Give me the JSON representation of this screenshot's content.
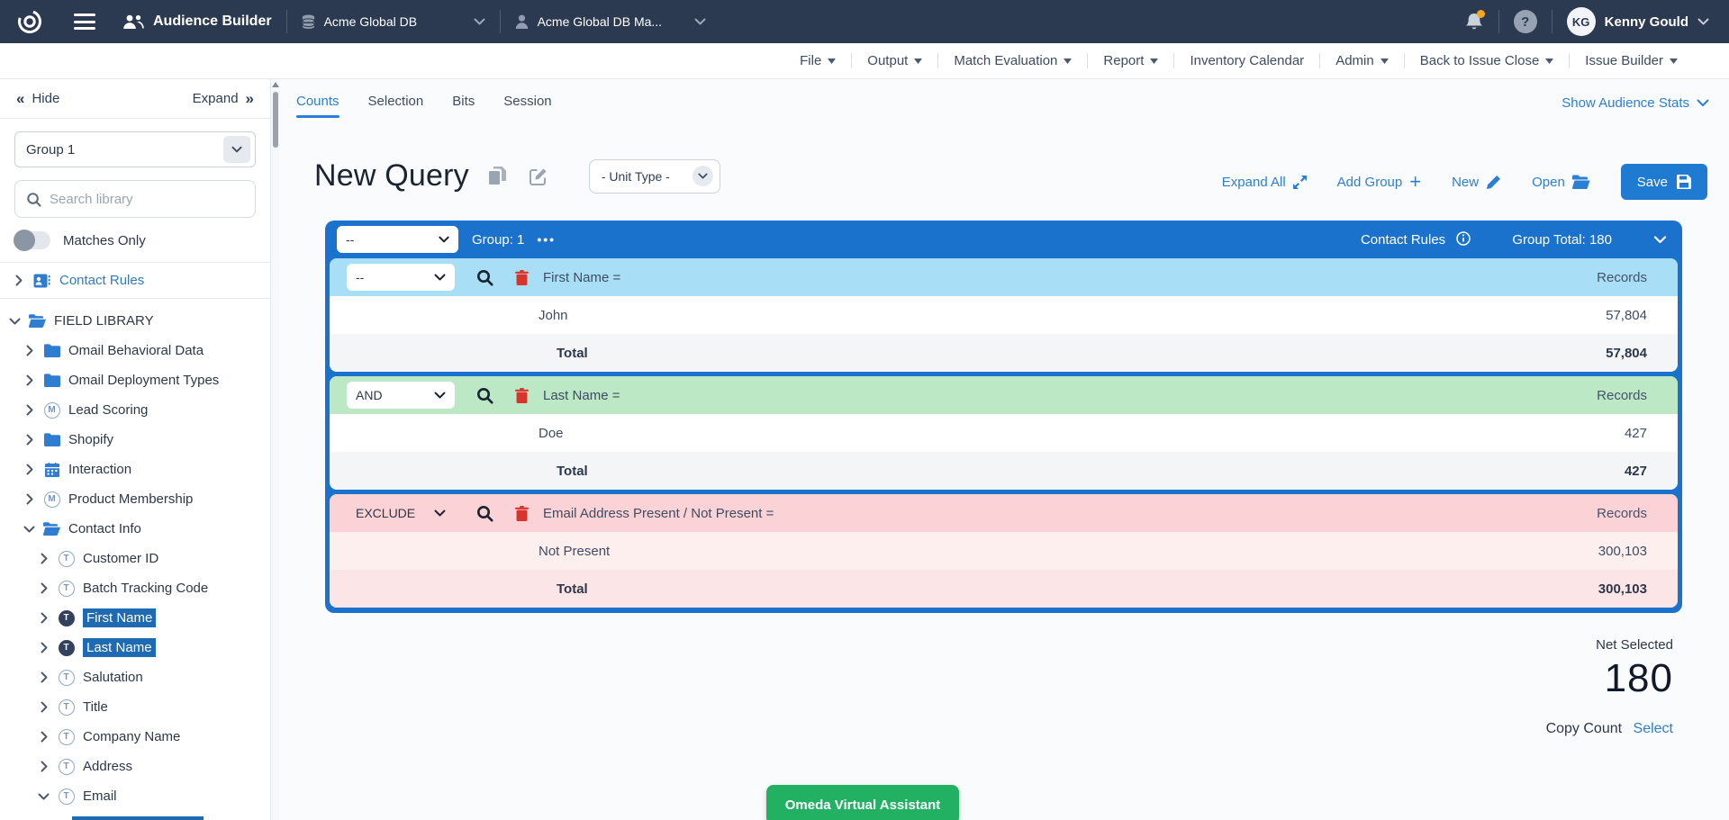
{
  "colors": {
    "navbar_bg": "#2b3a50",
    "accent_blue": "#2b7fd4",
    "save_button": "#1f7ad1",
    "group_container": "#1b72cc",
    "card_blue_header": "#a9def7",
    "card_green_header": "#bce8c6",
    "card_pink_header": "#fbd3d6",
    "trash_red": "#d7342c",
    "selection_highlight": "#1e6ab3",
    "assistant_green": "#22b163",
    "notification_dot": "#f5a623"
  },
  "navbar": {
    "app_name": "Audience Builder",
    "database_selector": "Acme Global DB",
    "profile_selector": "Acme Global DB Ma...",
    "user_initials": "KG",
    "user_name": "Kenny Gould"
  },
  "menubar": {
    "items": [
      {
        "label": "File",
        "caret": true
      },
      {
        "label": "Output",
        "caret": true
      },
      {
        "label": "Match Evaluation",
        "caret": true
      },
      {
        "label": "Report",
        "caret": true
      },
      {
        "label": "Inventory Calendar",
        "caret": false
      },
      {
        "label": "Admin",
        "caret": true
      },
      {
        "label": "Back to Issue Close",
        "caret": true
      },
      {
        "label": "Issue Builder",
        "caret": true
      }
    ]
  },
  "sidebar": {
    "hide_label": "Hide",
    "expand_label": "Expand",
    "group_select_value": "Group 1",
    "search_placeholder": "Search library",
    "matches_only_label": "Matches Only",
    "contact_rules_label": "Contact Rules",
    "tree": [
      {
        "label": "FIELD LIBRARY",
        "icon": "folder-open-icon",
        "level": 0,
        "expanded": true
      },
      {
        "label": "Omail Behavioral Data",
        "icon": "folder-icon",
        "level": 1
      },
      {
        "label": "Omail Deployment Types",
        "icon": "folder-icon",
        "level": 1
      },
      {
        "label": "Lead Scoring",
        "icon": "m-circle-icon",
        "level": 1
      },
      {
        "label": "Shopify",
        "icon": "folder-icon",
        "level": 1
      },
      {
        "label": "Interaction",
        "icon": "calendar-icon",
        "level": 1
      },
      {
        "label": "Product Membership",
        "icon": "m-circle-icon",
        "level": 1
      },
      {
        "label": "Contact Info",
        "icon": "folder-open-icon",
        "level": 1,
        "expanded": true
      },
      {
        "label": "Customer ID",
        "icon": "t-circle-icon",
        "level": 2
      },
      {
        "label": "Batch Tracking Code",
        "icon": "t-circle-icon",
        "level": 2
      },
      {
        "label": "First Name",
        "icon": "t-circle-filled-icon",
        "level": 2,
        "selected": true
      },
      {
        "label": "Last Name",
        "icon": "t-circle-filled-icon",
        "level": 2,
        "selected": true
      },
      {
        "label": "Salutation",
        "icon": "t-circle-icon",
        "level": 2
      },
      {
        "label": "Title",
        "icon": "t-circle-icon",
        "level": 2
      },
      {
        "label": "Company Name",
        "icon": "t-circle-icon",
        "level": 2
      },
      {
        "label": "Address",
        "icon": "t-circle-icon",
        "level": 2
      },
      {
        "label": "Email",
        "icon": "t-circle-icon",
        "level": 2,
        "expanded": true
      }
    ]
  },
  "main": {
    "tabs": [
      {
        "label": "Counts",
        "active": true
      },
      {
        "label": "Selection",
        "active": false
      },
      {
        "label": "Bits",
        "active": false
      },
      {
        "label": "Session",
        "active": false
      }
    ],
    "show_audience_stats": "Show Audience Stats",
    "query_title": "New Query",
    "unit_type_value": "- Unit Type -",
    "actions": {
      "expand_all": "Expand All",
      "add_group": "Add Group",
      "new": "New",
      "open": "Open",
      "save": "Save"
    },
    "group": {
      "operator": "--",
      "label": "Group: 1",
      "contact_rules": "Contact Rules",
      "total": "Group Total: 180"
    },
    "records_header": "Records",
    "total_label": "Total",
    "criteria": [
      {
        "operator": "--",
        "field": "First Name =",
        "theme": "blue",
        "rows": [
          {
            "label": "John",
            "value": "57,804"
          }
        ],
        "total": "57,804"
      },
      {
        "operator": "AND",
        "field": "Last Name =",
        "theme": "green",
        "rows": [
          {
            "label": "Doe",
            "value": "427"
          }
        ],
        "total": "427"
      },
      {
        "operator": "EXCLUDE",
        "field": "Email Address Present / Not Present =",
        "theme": "pink",
        "rows": [
          {
            "label": "Not Present",
            "value": "300,103"
          }
        ],
        "total": "300,103"
      }
    ],
    "net_selected": {
      "label": "Net Selected",
      "value": "180"
    },
    "copy_count": {
      "label": "Copy Count",
      "link": "Select"
    },
    "assistant_button": "Omeda Virtual Assistant"
  }
}
